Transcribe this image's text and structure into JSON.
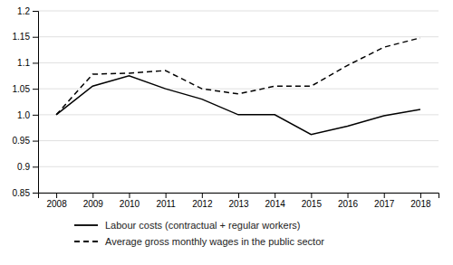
{
  "chart_data": {
    "type": "line",
    "x": [
      2008,
      2009,
      2010,
      2011,
      2012,
      2013,
      2014,
      2015,
      2016,
      2017,
      2018
    ],
    "xlim": [
      2007.5,
      2018.5
    ],
    "xticks": [
      2008,
      2009,
      2010,
      2011,
      2012,
      2013,
      2014,
      2015,
      2016,
      2017,
      2018
    ],
    "ylim": [
      0.85,
      1.2
    ],
    "yticks": [
      0.85,
      0.9,
      0.95,
      {
        "value": 1.0,
        "label": "1.0"
      },
      1.05,
      1.1,
      1.15,
      1.2
    ],
    "grid": true,
    "legend": "bottom",
    "series": [
      {
        "name": "Labour costs (contractual + regular workers)",
        "color": "#000000",
        "line_style": "solid",
        "values": [
          1.0,
          1.055,
          1.075,
          1.05,
          1.03,
          1.0,
          1.0,
          0.962,
          0.978,
          0.998,
          1.01
        ]
      },
      {
        "name": "Average gross monthly wages in the public sector",
        "color": "#000000",
        "line_style": "dashed",
        "values": [
          1.0,
          1.078,
          1.08,
          1.085,
          1.05,
          1.04,
          1.055,
          1.055,
          1.095,
          1.13,
          1.148
        ]
      }
    ]
  }
}
